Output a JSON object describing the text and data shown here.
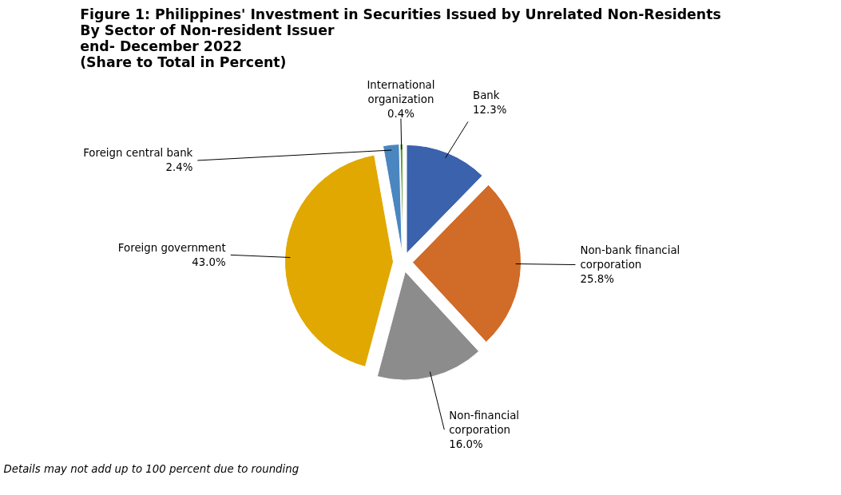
{
  "chart_data": {
    "type": "pie",
    "title": "Figure 1:  Philippines' Investment in Securities Issued by Unrelated Non-Residents\nBy Sector of Non-resident Issuer\nend- December 2022\n(Share to Total in Percent)",
    "categories": [
      "Bank",
      "Non-bank financial corporation",
      "Non-financial corporation",
      "Foreign government",
      "Foreign central bank",
      "International organization"
    ],
    "values": [
      12.3,
      25.8,
      16.0,
      43.0,
      2.4,
      0.4
    ],
    "value_labels": [
      "12.3%",
      "25.8%",
      "16.0%",
      "43.0%",
      "2.4%",
      "0.4%"
    ],
    "colors": [
      "#3a62ad",
      "#d06b28",
      "#8c8c8c",
      "#e0a800",
      "#4a86c0",
      "#5a9a3a"
    ],
    "annotations": [
      "Details may not add up to 100 percent due to rounding"
    ]
  }
}
